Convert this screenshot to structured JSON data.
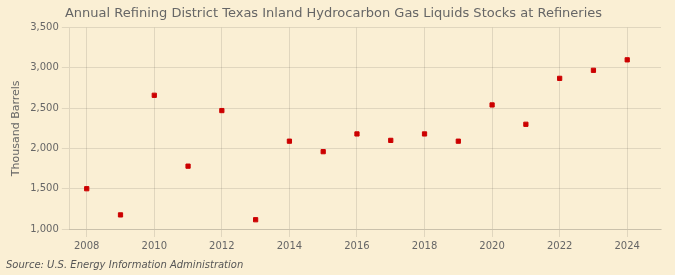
{
  "chart_data": {
    "type": "scatter",
    "title": "Annual Refining District Texas Inland Hydrocarbon Gas Liquids Stocks at Refineries",
    "ylabel": "Thousand Barrels",
    "annotation": "Source: U.S. Energy Information Administration",
    "x": [
      2008,
      2009,
      2010,
      2011,
      2012,
      2013,
      2014,
      2015,
      2016,
      2017,
      2018,
      2019,
      2020,
      2021,
      2022,
      2023,
      2024
    ],
    "values": [
      1500,
      1175,
      2660,
      1780,
      2470,
      1115,
      2090,
      1960,
      2180,
      2100,
      2180,
      2090,
      2540,
      2300,
      2870,
      2970,
      3100
    ],
    "color": "#cc0000",
    "marker": "square",
    "xlim": [
      2007.5,
      2025
    ],
    "xticks": [
      2008,
      2010,
      2012,
      2014,
      2016,
      2018,
      2020,
      2022,
      2024
    ],
    "ylim": [
      1000,
      3500
    ],
    "yticks": [
      {
        "value": 1000,
        "label": "1,000"
      },
      {
        "value": 1500,
        "label": "1,500"
      },
      {
        "value": 2000,
        "label": "2,000"
      },
      {
        "value": 2500,
        "label": "2,500"
      },
      {
        "value": 3000,
        "label": "3,000"
      },
      {
        "value": 3500,
        "label": "3,500"
      }
    ],
    "grid": true
  }
}
